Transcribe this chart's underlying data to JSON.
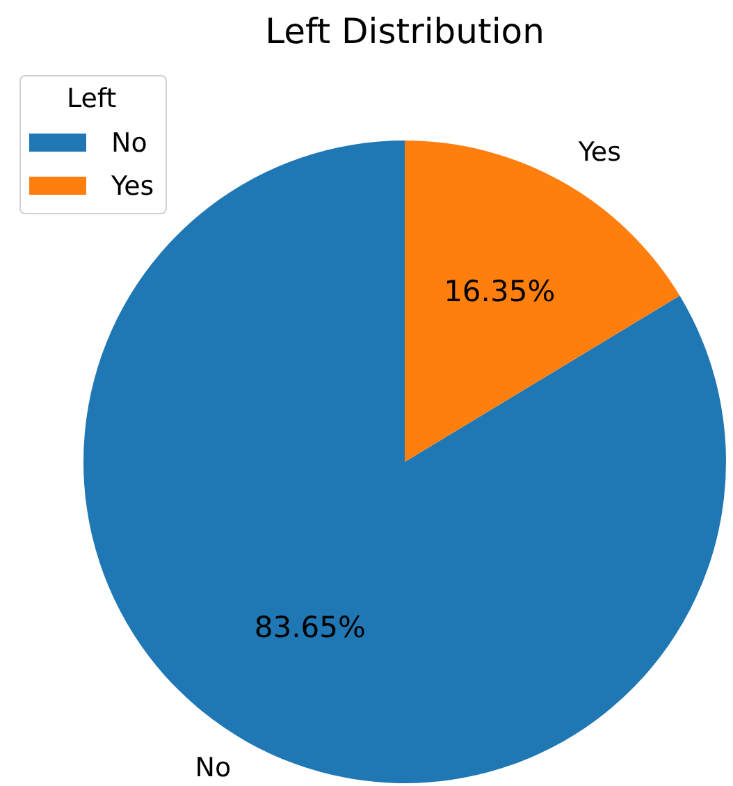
{
  "chart_data": {
    "type": "pie",
    "title": "Left Distribution",
    "legend_title": "Left",
    "legend": "top left",
    "categories": [
      "No",
      "Yes"
    ],
    "values": [
      83.65,
      16.35
    ],
    "colors": [
      "#1f77b4",
      "#ff7f0e"
    ],
    "value_labels": [
      "83.65%",
      "16.35%"
    ]
  }
}
